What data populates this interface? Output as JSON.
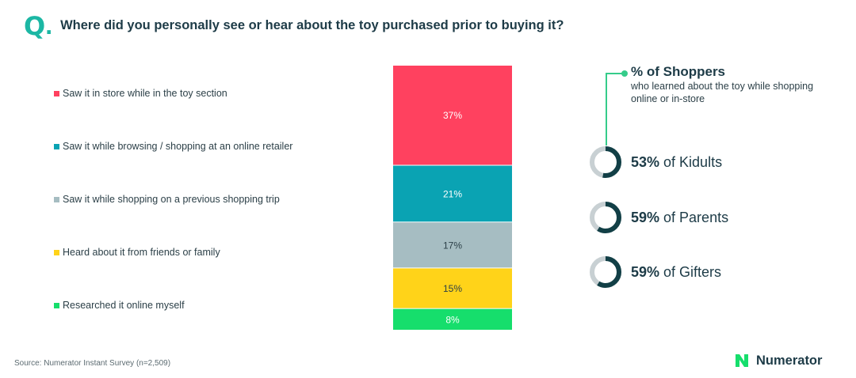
{
  "header": {
    "q_letter": "Q",
    "q_dot": ".",
    "question": "Where did you personally see or hear about the toy purchased prior to buying it?"
  },
  "chart_data": {
    "type": "bar",
    "stacked": true,
    "categories": [
      "Saw it in store while in the toy section",
      "Saw it while browsing / shopping at an online retailer",
      "Saw it while shopping on a previous shopping trip",
      "Heard about it from friends or family",
      "Researched it online myself"
    ],
    "values": [
      37,
      21,
      17,
      15,
      8
    ],
    "value_labels": [
      "37%",
      "21%",
      "17%",
      "15%",
      "8%"
    ],
    "colors": [
      "#ff415f",
      "#0aa3b3",
      "#a6bdc2",
      "#ffd319",
      "#16de6c"
    ],
    "title": "",
    "xlabel": "",
    "ylabel": "",
    "legend": "left",
    "grid": false
  },
  "side": {
    "heading": "% of Shoppers",
    "subtitle": "who learned about the toy while shopping online or in-store",
    "stats": [
      {
        "value": "53%",
        "label": "of Kidults",
        "fraction": 0.53
      },
      {
        "value": "59%",
        "label": "of Parents",
        "fraction": 0.59
      },
      {
        "value": "59%",
        "label": "of Gifters",
        "fraction": 0.59
      }
    ],
    "track_color": "#c8d0d3",
    "ring_color": "#123f46"
  },
  "footer": {
    "source": "Source: Numerator Instant Survey (n=2,509)",
    "brand": "Numerator",
    "brand_color": "#16de6c"
  }
}
